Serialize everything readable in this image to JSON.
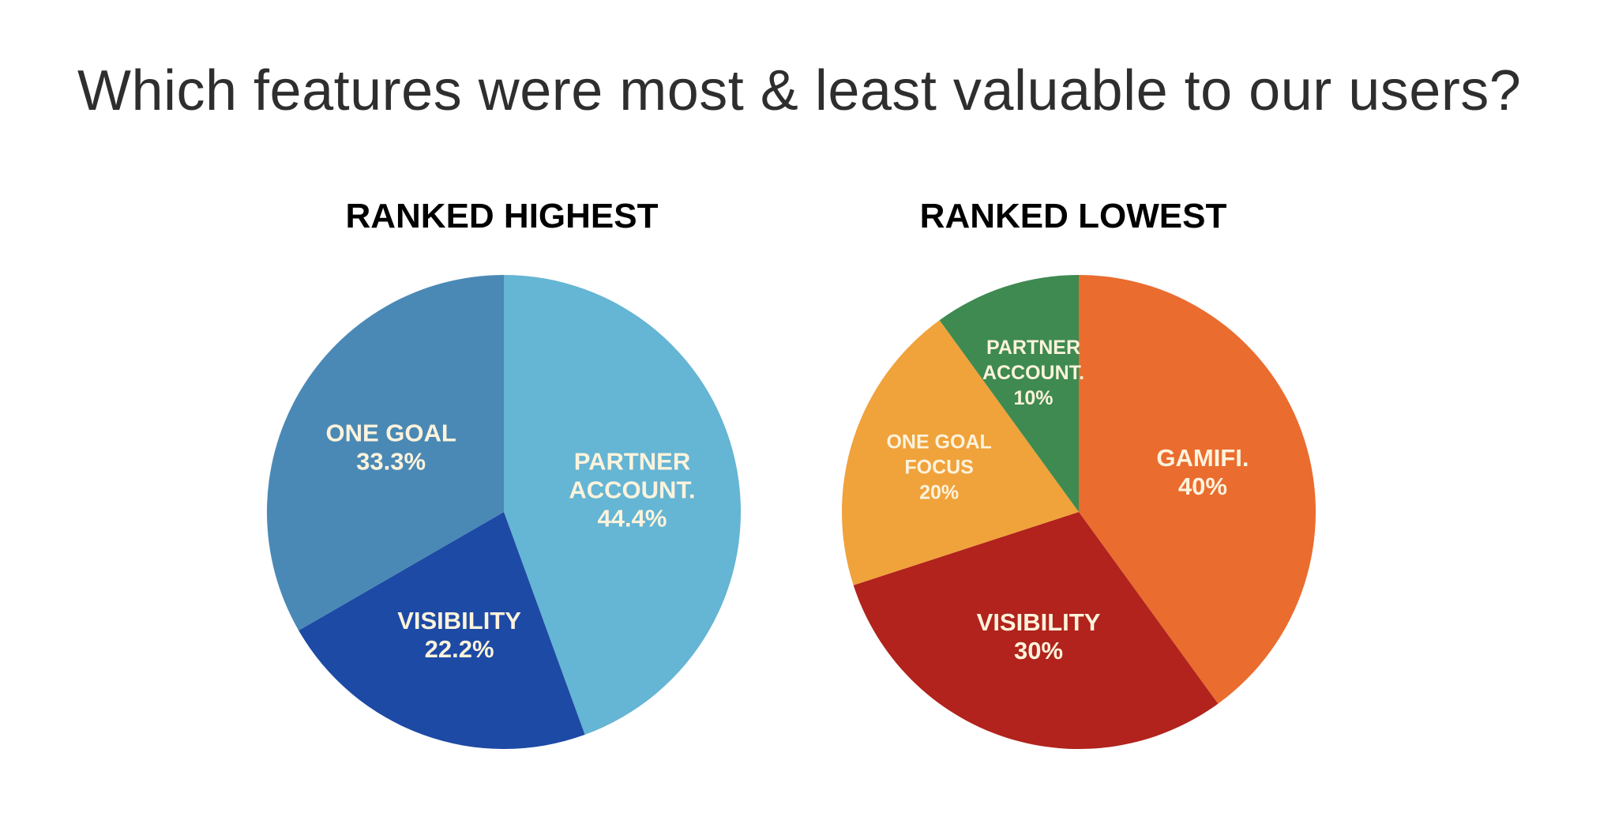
{
  "page": {
    "title": "Which features were most & least valuable to our users?"
  },
  "chart_data": [
    {
      "type": "pie",
      "title": "RANKED HIGHEST",
      "slices": [
        {
          "name": "partner-account",
          "label_lines": [
            "PARTNER",
            "ACCOUNT.",
            "44.4%"
          ],
          "value": 44.4,
          "color": "#65b5d4"
        },
        {
          "name": "visibility",
          "label_lines": [
            "VISIBILITY",
            "22.2%"
          ],
          "value": 22.2,
          "color": "#1d4aa5"
        },
        {
          "name": "one-goal",
          "label_lines": [
            "ONE GOAL",
            "33.3%"
          ],
          "value": 33.3,
          "color": "#4a89b5"
        }
      ]
    },
    {
      "type": "pie",
      "title": "RANKED LOWEST",
      "slices": [
        {
          "name": "gamifi",
          "label_lines": [
            "GAMIFI.",
            "40%"
          ],
          "value": 40,
          "color": "#ea6c2f"
        },
        {
          "name": "visibility",
          "label_lines": [
            "VISIBILITY",
            "30%"
          ],
          "value": 30,
          "color": "#b1231c"
        },
        {
          "name": "one-goal-focus",
          "label_lines": [
            "ONE GOAL",
            "FOCUS",
            "20%"
          ],
          "value": 20,
          "color": "#f0a23b"
        },
        {
          "name": "partner-account",
          "label_lines": [
            "PARTNER",
            "ACCOUNT.",
            "10%"
          ],
          "value": 10,
          "color": "#3e8a50"
        }
      ]
    }
  ]
}
